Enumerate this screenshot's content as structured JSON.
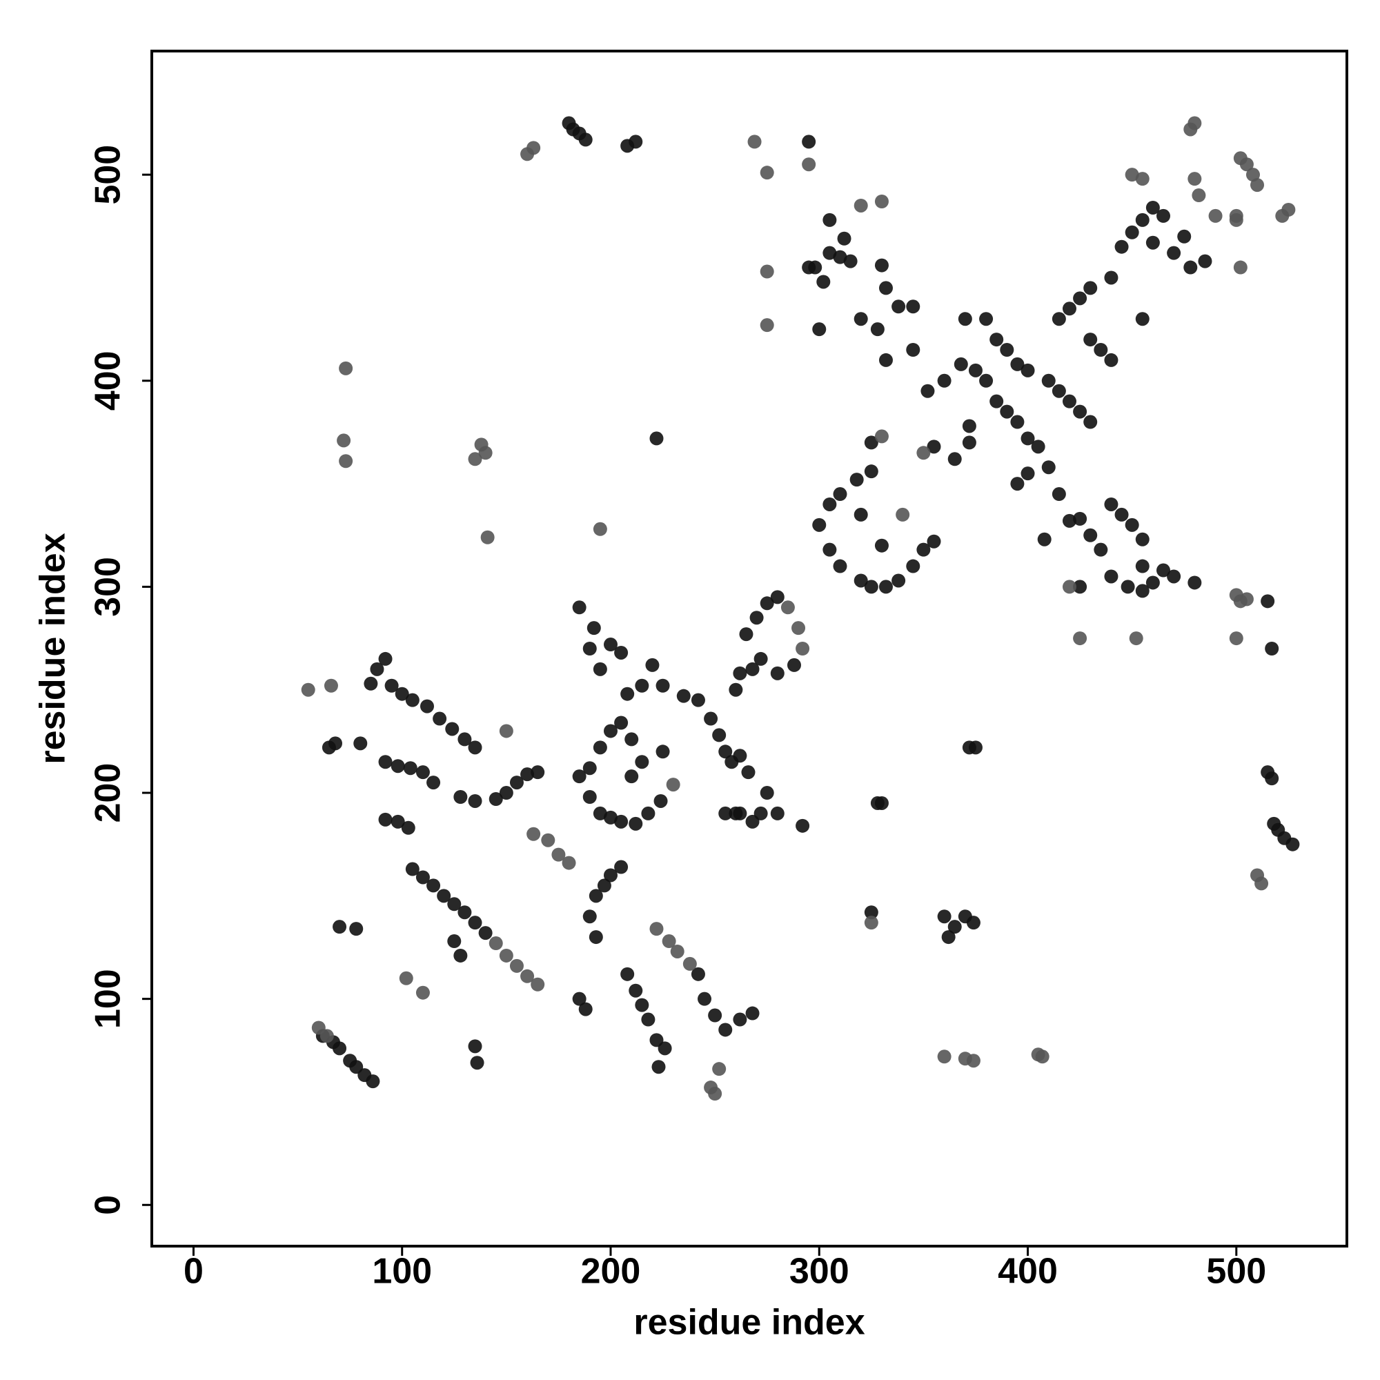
{
  "chart_data": {
    "type": "scatter",
    "xlabel": "residue index",
    "ylabel": "residue index",
    "xlim": [
      -20,
      553
    ],
    "ylim": [
      -20,
      560
    ],
    "xticks": [
      0,
      100,
      200,
      300,
      400,
      500
    ],
    "yticks": [
      0,
      100,
      200,
      300,
      400,
      500
    ],
    "grid": false,
    "series": [
      {
        "color": "#111111",
        "x": [
          180,
          182,
          185,
          188,
          208,
          212,
          295,
          222,
          62,
          67,
          70,
          75,
          78,
          82,
          86,
          105,
          110,
          115,
          120,
          125,
          130,
          135,
          140,
          85,
          88,
          92,
          95,
          100,
          105,
          112,
          118,
          124,
          130,
          135,
          92,
          98,
          104,
          110,
          115,
          92,
          98,
          103,
          128,
          135,
          145,
          150,
          155,
          160,
          165,
          68,
          80,
          70,
          78,
          65,
          193,
          197,
          200,
          205,
          190,
          193,
          185,
          188,
          208,
          212,
          215,
          218,
          242,
          245,
          250,
          255,
          262,
          268,
          222,
          226,
          223,
          135,
          136,
          125,
          128,
          185,
          190,
          192,
          195,
          200,
          205,
          190,
          195,
          200,
          205,
          210,
          185,
          190,
          195,
          200,
          205,
          212,
          218,
          224,
          208,
          215,
          220,
          225,
          235,
          242,
          210,
          215,
          225,
          248,
          252,
          255,
          258,
          262,
          266,
          260,
          262,
          265,
          270,
          275,
          280,
          288,
          280,
          268,
          272,
          262,
          268,
          272,
          275,
          280,
          292,
          255,
          260,
          300,
          305,
          310,
          318,
          325,
          305,
          310,
          320,
          325,
          332,
          338,
          345,
          350,
          355,
          320,
          330,
          298,
          302,
          305,
          310,
          315,
          330,
          332,
          338,
          345,
          320,
          328,
          332,
          345,
          352,
          360,
          325,
          355,
          365,
          372,
          372,
          368,
          375,
          380,
          385,
          390,
          395,
          400,
          405,
          370,
          380,
          385,
          390,
          395,
          400,
          410,
          415,
          420,
          425,
          430,
          395,
          400,
          410,
          415,
          420,
          408,
          425,
          430,
          435,
          440,
          445,
          450,
          455,
          455,
          425,
          440,
          448,
          455,
          460,
          465,
          470,
          480,
          415,
          420,
          425,
          430,
          440,
          430,
          435,
          440,
          445,
          450,
          455,
          460,
          465,
          455,
          460,
          470,
          475,
          478,
          485,
          300,
          295,
          305,
          312,
          360,
          365,
          370,
          374,
          362,
          325,
          328,
          330,
          375,
          372,
          515,
          517,
          515,
          517,
          518,
          520,
          523,
          527
        ],
        "values": [
          525,
          522,
          520,
          517,
          514,
          516,
          516,
          372,
          82,
          79,
          76,
          70,
          67,
          63,
          60,
          163,
          159,
          155,
          150,
          146,
          142,
          137,
          132,
          253,
          260,
          265,
          252,
          248,
          245,
          242,
          236,
          231,
          226,
          222,
          215,
          213,
          212,
          210,
          205,
          187,
          186,
          183,
          198,
          196,
          197,
          200,
          205,
          209,
          210,
          224,
          224,
          135,
          134,
          222,
          150,
          155,
          160,
          164,
          140,
          130,
          100,
          95,
          112,
          104,
          97,
          90,
          112,
          100,
          92,
          85,
          90,
          93,
          80,
          76,
          67,
          77,
          69,
          128,
          121,
          290,
          270,
          280,
          260,
          272,
          268,
          212,
          222,
          230,
          234,
          226,
          208,
          198,
          190,
          188,
          186,
          185,
          190,
          196,
          248,
          252,
          262,
          252,
          247,
          245,
          208,
          215,
          220,
          236,
          228,
          220,
          215,
          218,
          210,
          250,
          258,
          277,
          285,
          292,
          295,
          262,
          258,
          260,
          265,
          190,
          186,
          190,
          200,
          190,
          184,
          190,
          190,
          330,
          340,
          345,
          352,
          356,
          318,
          310,
          303,
          300,
          300,
          303,
          310,
          318,
          322,
          335,
          320,
          455,
          448,
          462,
          460,
          458,
          456,
          445,
          436,
          436,
          430,
          425,
          410,
          415,
          395,
          400,
          370,
          368,
          362,
          378,
          370,
          408,
          405,
          400,
          390,
          385,
          380,
          372,
          368,
          430,
          430,
          420,
          415,
          408,
          405,
          400,
          395,
          390,
          385,
          380,
          350,
          355,
          358,
          345,
          332,
          323,
          333,
          325,
          318,
          340,
          335,
          330,
          323,
          310,
          300,
          305,
          300,
          298,
          302,
          308,
          305,
          302,
          430,
          435,
          440,
          445,
          450,
          420,
          415,
          410,
          465,
          472,
          478,
          484,
          480,
          430,
          467,
          462,
          470,
          455,
          458,
          425,
          455,
          478,
          469,
          140,
          135,
          140,
          137,
          130,
          142,
          195,
          195,
          222,
          222,
          293,
          270,
          210,
          207,
          185,
          182,
          178,
          175
        ]
      },
      {
        "color": "#555555",
        "x": [
          160,
          163,
          269,
          275,
          295,
          73,
          72,
          73,
          135,
          138,
          140,
          141,
          195,
          55,
          66,
          60,
          64,
          102,
          110,
          150,
          248,
          250,
          252,
          275,
          275,
          360,
          370,
          374,
          405,
          407,
          425,
          452,
          500,
          502,
          505,
          500,
          510,
          512,
          478,
          480,
          502,
          505,
          508,
          510,
          522,
          525,
          450,
          455,
          480,
          482,
          490,
          500,
          502,
          500,
          325,
          330,
          320,
          330,
          163,
          170,
          175,
          180,
          222,
          228,
          232,
          238,
          145,
          150,
          155,
          160,
          165,
          420,
          350,
          340,
          230,
          285,
          290,
          292
        ],
        "values": [
          510,
          513,
          516,
          501,
          505,
          406,
          371,
          361,
          362,
          369,
          365,
          324,
          328,
          250,
          252,
          86,
          82,
          110,
          103,
          230,
          57,
          54,
          66,
          453,
          427,
          72,
          71,
          70,
          73,
          72,
          275,
          275,
          296,
          293,
          294,
          275,
          160,
          156,
          522,
          525,
          508,
          505,
          500,
          495,
          480,
          483,
          500,
          498,
          498,
          490,
          480,
          478,
          455,
          480,
          137,
          373,
          485,
          487,
          180,
          177,
          170,
          166,
          134,
          128,
          123,
          117,
          127,
          121,
          116,
          111,
          107,
          300,
          365,
          335,
          204,
          290,
          280,
          270
        ]
      }
    ]
  }
}
